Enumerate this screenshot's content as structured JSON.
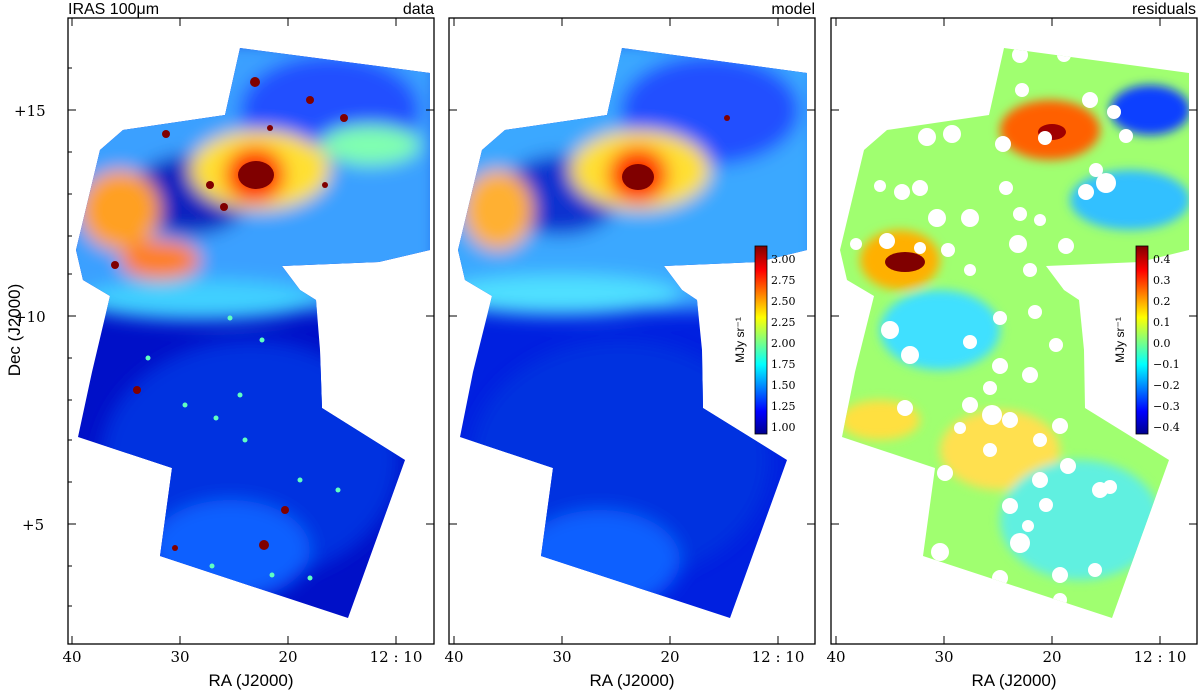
{
  "panels": [
    {
      "title_left": "IRAS 100μm",
      "title_right": "data"
    },
    {
      "title_left": "",
      "title_right": "model"
    },
    {
      "title_left": "",
      "title_right": "residuals"
    }
  ],
  "axes": {
    "xlabel": "RA (J2000)",
    "ylabel": "Dec (J2000)",
    "xticks": [
      "40",
      "30",
      "20",
      "12 : 10"
    ],
    "yticks": [
      "+15",
      "+10",
      "+5"
    ]
  },
  "colorbars": [
    {
      "label": "MJy sr⁻¹",
      "ticks": [
        "3.00",
        "2.75",
        "2.50",
        "2.25",
        "2.00",
        "1.75",
        "1.50",
        "1.25",
        "1.00"
      ]
    },
    {
      "label": "MJy sr⁻¹",
      "ticks": [
        "0.4",
        "0.3",
        "0.2",
        "0.1",
        "0.0",
        "−0.1",
        "−0.2",
        "−0.3",
        "−0.4"
      ]
    }
  ],
  "colors": {
    "colormap": [
      "#00008f",
      "#0000ff",
      "#00ffff",
      "#ffff00",
      "#ff0000",
      "#800000"
    ]
  }
}
